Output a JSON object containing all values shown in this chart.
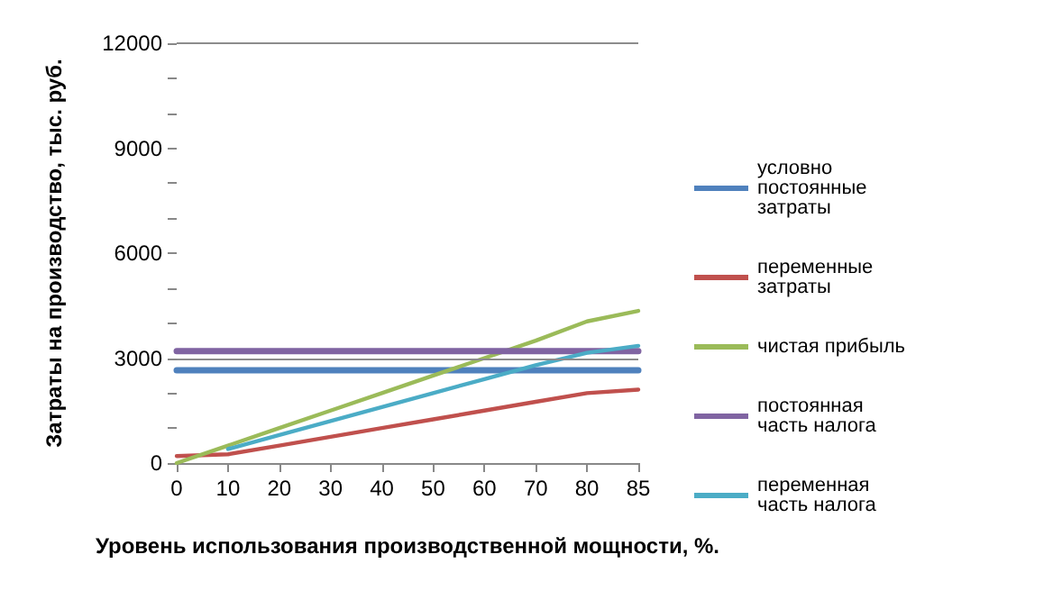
{
  "chart_data": {
    "type": "line",
    "xlabel": "Уровень использования производственной мощности, %.",
    "ylabel": "Затраты на производство, тыс. руб.",
    "categories": [
      "0",
      "10",
      "20",
      "30",
      "40",
      "50",
      "60",
      "70",
      "80",
      "85"
    ],
    "series": [
      {
        "name": "условно постоянные затраты",
        "color": "#4f81bd",
        "values": [
          2650,
          2650,
          2650,
          2650,
          2650,
          2650,
          2650,
          2650,
          2650,
          2650
        ]
      },
      {
        "name": "переменные затраты",
        "color": "#c0504d",
        "values": [
          200,
          250,
          500,
          750,
          1000,
          1250,
          1500,
          1750,
          2000,
          2100
        ]
      },
      {
        "name": "чистая прибыль",
        "color": "#9bbb59",
        "values": [
          0,
          500,
          1000,
          1500,
          2000,
          2500,
          3000,
          3500,
          4050,
          4350
        ]
      },
      {
        "name": "постоянная часть налога",
        "color": "#8064a2",
        "values": [
          3200,
          3200,
          3200,
          3200,
          3200,
          3200,
          3200,
          3200,
          3200,
          3200
        ]
      },
      {
        "name": "переменная часть налога",
        "color": "#4bacc6",
        "values": [
          null,
          400,
          800,
          1200,
          1600,
          2000,
          2400,
          2800,
          3150,
          3350
        ]
      }
    ],
    "ylim": [
      0,
      12000
    ],
    "yticks": [
      0,
      {
        "value": 1000,
        "label": null
      },
      {
        "value": 2000,
        "label": null
      },
      3000,
      {
        "value": 4000,
        "label": null
      },
      {
        "value": 5000,
        "label": null
      },
      6000,
      {
        "value": 7000,
        "label": null
      },
      {
        "value": 8000,
        "label": null
      },
      9000,
      {
        "value": 10000,
        "label": null
      },
      {
        "value": 11000,
        "label": null
      },
      12000
    ],
    "ref_lines": [
      {
        "axis": "y",
        "value": 3000,
        "color": "#8c8c8c"
      }
    ],
    "legend": "right",
    "marker": "none",
    "line_style": "solid",
    "grid": false
  }
}
